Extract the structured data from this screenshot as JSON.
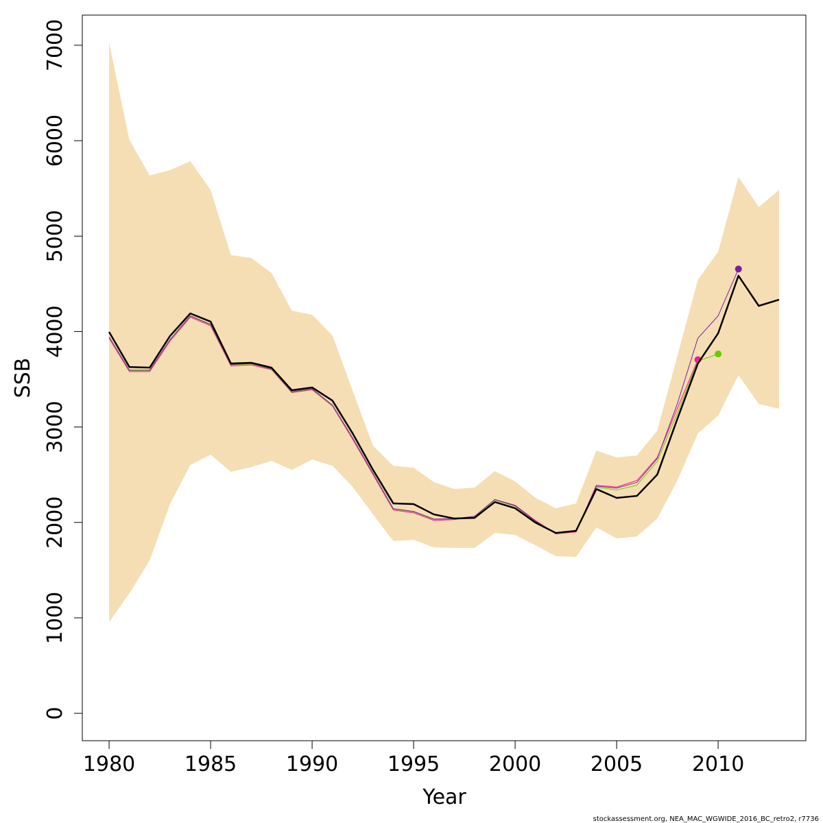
{
  "chart_data": {
    "type": "line",
    "xlabel": "Year",
    "ylabel": "SSB",
    "footnote": "stockassessment.org, NEA_MAC_WGWIDE_2016_BC_retro2, r7736",
    "x": [
      1980,
      1981,
      1982,
      1983,
      1984,
      1985,
      1986,
      1987,
      1988,
      1989,
      1990,
      1991,
      1992,
      1993,
      1994,
      1995,
      1996,
      1997,
      1998,
      1999,
      2000,
      2001,
      2002,
      2003,
      2004,
      2005,
      2006,
      2007,
      2008,
      2009,
      2010,
      2011,
      2012,
      2013
    ],
    "xlim": [
      1978.68,
      2014.32
    ],
    "xticks": [
      1980,
      1985,
      1990,
      1995,
      2000,
      2005,
      2010
    ],
    "ylim": [
      -287,
      7316
    ],
    "yticks": [
      0,
      1000,
      2000,
      3000,
      4000,
      5000,
      6000,
      7000
    ],
    "band": {
      "color": "#f5deb3",
      "upper": [
        7029,
        6008,
        5635,
        5692,
        5785,
        5484,
        4801,
        4772,
        4614,
        4219,
        4176,
        3960,
        3378,
        2803,
        2594,
        2573,
        2422,
        2350,
        2365,
        2537,
        2429,
        2257,
        2149,
        2199,
        2753,
        2681,
        2702,
        2961,
        3752,
        4542,
        4837,
        5620,
        5304,
        5484
      ],
      "lower": [
        956,
        1258,
        1603,
        2192,
        2602,
        2710,
        2530,
        2580,
        2645,
        2551,
        2659,
        2594,
        2372,
        2084,
        1804,
        1818,
        1739,
        1732,
        1732,
        1890,
        1869,
        1761,
        1646,
        1639,
        1948,
        1833,
        1854,
        2041,
        2444,
        2932,
        3119,
        3543,
        3241,
        3191
      ]
    },
    "series": [
      {
        "color": "#ff1493",
        "end_marker": true,
        "width": 1,
        "values": [
          3930,
          3580,
          3580,
          3900,
          4150,
          4060,
          3640,
          3650,
          3600,
          3360,
          3390,
          3220,
          2870,
          2500,
          2130,
          2100,
          2020,
          2030,
          2060,
          2240,
          2180,
          2020,
          1880,
          1900,
          2390,
          2370,
          2440,
          2680,
          3200,
          3705,
          null,
          null,
          null,
          null
        ]
      },
      {
        "color": "#66cc00",
        "end_marker": true,
        "width": 1,
        "values": [
          3940,
          3590,
          3590,
          3910,
          4160,
          4070,
          3650,
          3660,
          3605,
          3365,
          3395,
          3225,
          2880,
          2510,
          2140,
          2110,
          2030,
          2035,
          2060,
          2235,
          2170,
          2010,
          1885,
          1905,
          2370,
          2340,
          2390,
          2640,
          3150,
          3690,
          3765,
          null,
          null,
          null
        ]
      },
      {
        "color": "#7a1fa2",
        "end_marker": true,
        "width": 1,
        "values": [
          3945,
          3595,
          3595,
          3915,
          4165,
          4075,
          3655,
          3665,
          3610,
          3370,
          3400,
          3230,
          2885,
          2515,
          2145,
          2115,
          2035,
          2040,
          2065,
          2240,
          2175,
          2015,
          1888,
          1908,
          2380,
          2360,
          2420,
          2670,
          3250,
          3930,
          4165,
          4655,
          null,
          null
        ]
      },
      {
        "color": "#000000",
        "end_marker": false,
        "width": 2.5,
        "values": [
          3996,
          3629,
          3622,
          3953,
          4190,
          4104,
          3665,
          3673,
          3622,
          3385,
          3414,
          3277,
          2932,
          2551,
          2199,
          2192,
          2084,
          2041,
          2048,
          2214,
          2149,
          1998,
          1890,
          1912,
          2350,
          2257,
          2278,
          2501,
          3090,
          3665,
          3982,
          4585,
          4269,
          4334
        ]
      }
    ]
  }
}
